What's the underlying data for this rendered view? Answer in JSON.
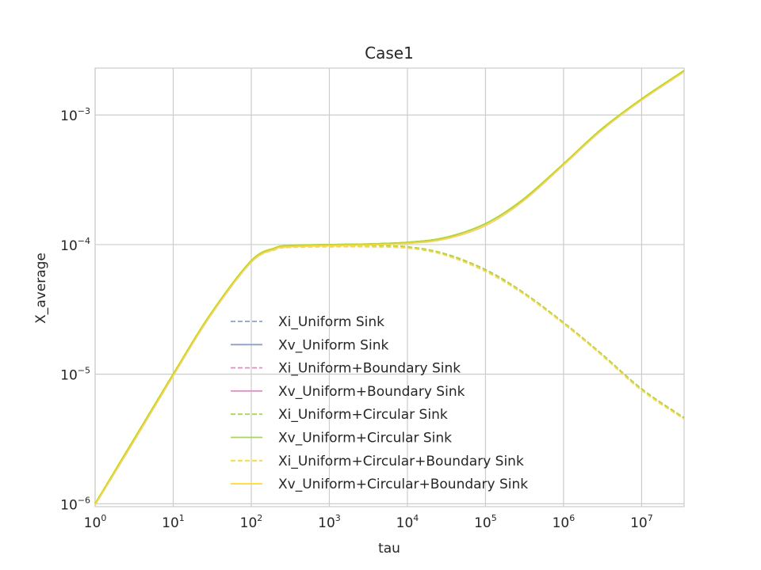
{
  "chart_data": {
    "type": "line",
    "title": "Case1",
    "xlabel": "tau",
    "ylabel": "X_average",
    "xscale": "log",
    "yscale": "log",
    "xlim": [
      1,
      35000000
    ],
    "ylim": [
      9.5e-07,
      0.0023
    ],
    "grid": true,
    "legend_position": "lower-center",
    "x_ticks": [
      {
        "value": 1,
        "base": "10",
        "exp": "0"
      },
      {
        "value": 10,
        "base": "10",
        "exp": "1"
      },
      {
        "value": 100,
        "base": "10",
        "exp": "2"
      },
      {
        "value": 1000,
        "base": "10",
        "exp": "3"
      },
      {
        "value": 10000,
        "base": "10",
        "exp": "4"
      },
      {
        "value": 100000,
        "base": "10",
        "exp": "5"
      },
      {
        "value": 1000000,
        "base": "10",
        "exp": "6"
      },
      {
        "value": 10000000,
        "base": "10",
        "exp": "7"
      }
    ],
    "y_ticks": [
      {
        "value": 1e-06,
        "base": "10",
        "exp": "−6"
      },
      {
        "value": 1e-05,
        "base": "10",
        "exp": "−5"
      },
      {
        "value": 0.0001,
        "base": "10",
        "exp": "−4"
      },
      {
        "value": 0.001,
        "base": "10",
        "exp": "−3"
      }
    ],
    "x": [
      1,
      3,
      10,
      30,
      100,
      200,
      300,
      1000,
      3000,
      10000,
      30000,
      100000,
      300000,
      1000000,
      3000000,
      10000000,
      35000000
    ],
    "series": [
      {
        "name": "Xi_Uniform Sink",
        "color": "#8da0cb",
        "dash": true,
        "values": [
          1e-06,
          3e-06,
          1e-05,
          2.9e-05,
          7.5e-05,
          9.3e-05,
          9.7e-05,
          9.8e-05,
          9.8e-05,
          9.6e-05,
          8.5e-05,
          6.4e-05,
          4.3e-05,
          2.5e-05,
          1.45e-05,
          7.7e-06,
          4.6e-06
        ]
      },
      {
        "name": "Xv_Uniform Sink",
        "color": "#8da0cb",
        "dash": false,
        "values": [
          1e-06,
          3e-06,
          1e-05,
          2.9e-05,
          7.5e-05,
          9.4e-05,
          9.8e-05,
          0.0001,
          0.000101,
          0.000104,
          0.000113,
          0.000145,
          0.000222,
          0.00042,
          0.00077,
          0.00133,
          0.0022
        ]
      },
      {
        "name": "Xi_Uniform+Boundary Sink",
        "color": "#e78ac3",
        "dash": true,
        "values": [
          1e-06,
          3e-06,
          1e-05,
          2.9e-05,
          7.5e-05,
          9.3e-05,
          9.7e-05,
          9.8e-05,
          9.8e-05,
          9.6e-05,
          8.5e-05,
          6.4e-05,
          4.3e-05,
          2.5e-05,
          1.45e-05,
          7.7e-06,
          4.6e-06
        ]
      },
      {
        "name": "Xv_Uniform+Boundary Sink",
        "color": "#e78ac3",
        "dash": false,
        "values": [
          1e-06,
          3e-06,
          1e-05,
          2.9e-05,
          7.5e-05,
          9.4e-05,
          9.8e-05,
          0.0001,
          0.000101,
          0.000104,
          0.000113,
          0.000145,
          0.000222,
          0.00042,
          0.00077,
          0.00133,
          0.0022
        ]
      },
      {
        "name": "Xi_Uniform+Circular Sink",
        "color": "#a6d854",
        "dash": true,
        "values": [
          1e-06,
          3e-06,
          1e-05,
          2.9e-05,
          7.5e-05,
          9.3e-05,
          9.7e-05,
          9.8e-05,
          9.8e-05,
          9.6e-05,
          8.5e-05,
          6.4e-05,
          4.3e-05,
          2.5e-05,
          1.45e-05,
          7.7e-06,
          4.6e-06
        ]
      },
      {
        "name": "Xv_Uniform+Circular Sink",
        "color": "#a6d854",
        "dash": false,
        "values": [
          1e-06,
          3e-06,
          1e-05,
          2.9e-05,
          7.5e-05,
          9.4e-05,
          9.8e-05,
          0.0001,
          0.000101,
          0.000104,
          0.000113,
          0.000145,
          0.000222,
          0.00042,
          0.00077,
          0.00133,
          0.0022
        ]
      },
      {
        "name": "Xi_Uniform+Circular+Boundary Sink",
        "color": "#ffd92f",
        "dash": true,
        "values": [
          9.8e-07,
          2.9e-06,
          9.7e-06,
          2.82e-05,
          7.3e-05,
          9.1e-05,
          9.5e-05,
          9.6e-05,
          9.6e-05,
          9.4e-05,
          8.3e-05,
          6.2e-05,
          4.2e-05,
          2.45e-05,
          1.42e-05,
          7.5e-06,
          4.5e-06
        ]
      },
      {
        "name": "Xv_Uniform+Circular+Boundary Sink",
        "color": "#ffd92f",
        "dash": false,
        "values": [
          9.8e-07,
          2.9e-06,
          9.7e-06,
          2.82e-05,
          7.3e-05,
          9.2e-05,
          9.6e-05,
          9.8e-05,
          9.9e-05,
          0.000102,
          0.00011,
          0.00014,
          0.000215,
          0.00041,
          0.00075,
          0.0013,
          0.00215
        ]
      }
    ]
  }
}
